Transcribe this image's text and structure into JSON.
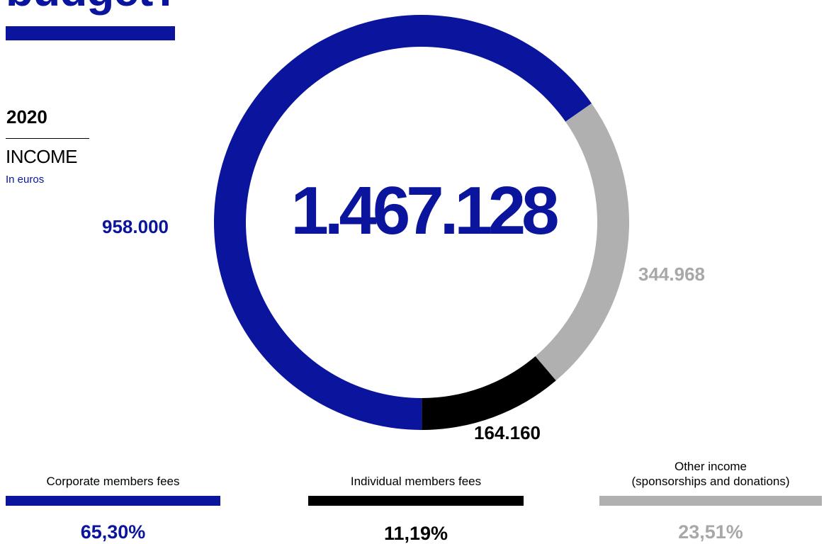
{
  "title": "budget?",
  "year": "2020",
  "section_label": "INCOME",
  "unit_label": "In euros",
  "colors": {
    "accent": "#0a149c",
    "black": "#000000",
    "gray": "#b0b0b0"
  },
  "chart_data": {
    "type": "pie",
    "donut": true,
    "total": 1467128,
    "total_label": "1.467.128",
    "series": [
      {
        "name": "Corporate members fees",
        "value": 958000,
        "value_label": "958.000",
        "percent_label": "65,30%",
        "color": "#0a149c"
      },
      {
        "name": "Other income\n(sponsorships and donations)",
        "value": 344968,
        "value_label": "344.968",
        "percent_label": "23,51%",
        "color": "#b0b0b0"
      },
      {
        "name": "Individual members fees",
        "value": 164160,
        "value_label": "164.160",
        "percent_label": "11,19%",
        "color": "#000000"
      }
    ]
  }
}
